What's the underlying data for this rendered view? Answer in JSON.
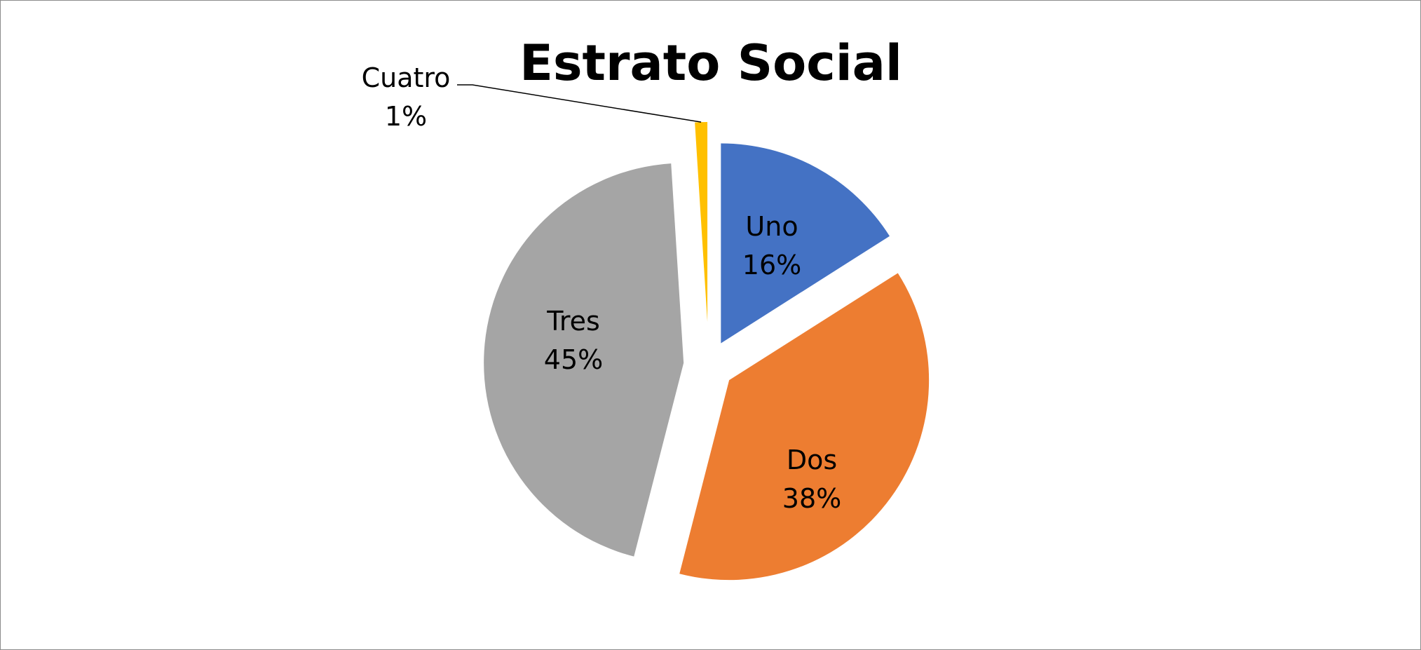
{
  "chart_data": {
    "type": "pie",
    "title": "Estrato Social",
    "categories": [
      "Uno",
      "Dos",
      "Tres",
      "Cuatro"
    ],
    "values": [
      16,
      38,
      45,
      1
    ],
    "value_labels": [
      "16%",
      "38%",
      "45%",
      "1%"
    ],
    "colors": [
      "#4472C4",
      "#ED7D31",
      "#A5A5A5",
      "#FFC000"
    ],
    "exploded": true,
    "legend": "none"
  }
}
